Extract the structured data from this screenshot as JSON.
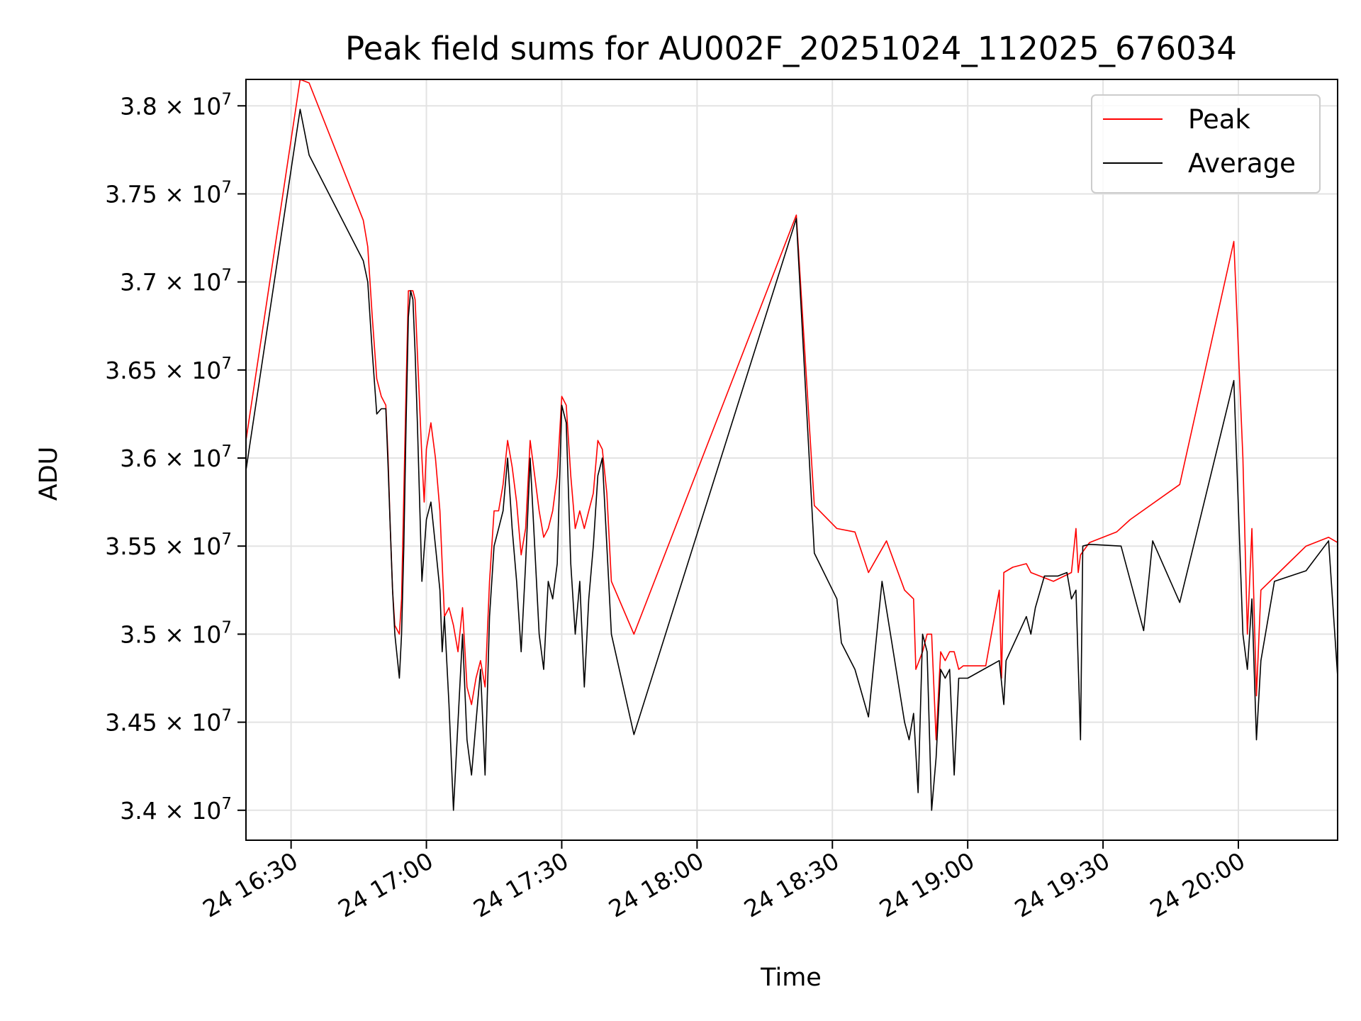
{
  "chart_data": {
    "type": "line",
    "title": "Peak field sums for AU002F_20251024_112025_676034",
    "xlabel": "Time",
    "ylabel": "ADU",
    "x_unit": "time (2025-10-24, HH:MM)",
    "xlim": [
      "16:20",
      "20:22"
    ],
    "ylim": [
      33830000,
      38150000
    ],
    "grid": true,
    "legend_position": "top-right",
    "x_ticks": [
      {
        "value": "16:30",
        "label": "24 16:30"
      },
      {
        "value": "17:00",
        "label": "24 17:00"
      },
      {
        "value": "17:30",
        "label": "24 17:30"
      },
      {
        "value": "18:00",
        "label": "24 18:00"
      },
      {
        "value": "18:30",
        "label": "24 18:30"
      },
      {
        "value": "19:00",
        "label": "24 19:00"
      },
      {
        "value": "19:30",
        "label": "24 19:30"
      },
      {
        "value": "20:00",
        "label": "24 20:00"
      }
    ],
    "y_ticks": [
      {
        "value": 34000000,
        "mantissa": "3.4",
        "exp": "7"
      },
      {
        "value": 34500000,
        "mantissa": "3.45",
        "exp": "7"
      },
      {
        "value": 35000000,
        "mantissa": "3.5",
        "exp": "7"
      },
      {
        "value": 35500000,
        "mantissa": "3.55",
        "exp": "7"
      },
      {
        "value": 36000000,
        "mantissa": "3.6",
        "exp": "7"
      },
      {
        "value": 36500000,
        "mantissa": "3.65",
        "exp": "7"
      },
      {
        "value": 37000000,
        "mantissa": "3.7",
        "exp": "7"
      },
      {
        "value": 37500000,
        "mantissa": "3.75",
        "exp": "7"
      },
      {
        "value": 38000000,
        "mantissa": "3.8",
        "exp": "7"
      }
    ],
    "series": [
      {
        "name": "Peak",
        "color": "#ff0000",
        "points": [
          [
            "16:20",
            36100000
          ],
          [
            "16:32",
            38150000
          ],
          [
            "16:34",
            38130000
          ],
          [
            "16:46",
            37350000
          ],
          [
            "16:47",
            37200000
          ],
          [
            "16:48",
            36800000
          ],
          [
            "16:49",
            36450000
          ],
          [
            "16:50",
            36350000
          ],
          [
            "16:51",
            36300000
          ],
          [
            "16:51.5",
            36000000
          ],
          [
            "16:52",
            35600000
          ],
          [
            "16:52.5",
            35250000
          ],
          [
            "16:53",
            35050000
          ],
          [
            "16:54",
            35000000
          ],
          [
            "16:54.5",
            35200000
          ],
          [
            "16:55",
            35800000
          ],
          [
            "16:55.5",
            36400000
          ],
          [
            "16:56",
            36950000
          ],
          [
            "16:57",
            36950000
          ],
          [
            "16:57.5",
            36900000
          ],
          [
            "16:58",
            36600000
          ],
          [
            "16:58.5",
            36300000
          ],
          [
            "16:59",
            36000000
          ],
          [
            "16:59.5",
            35750000
          ],
          [
            "17:00",
            36050000
          ],
          [
            "17:01",
            36200000
          ],
          [
            "17:02",
            36000000
          ],
          [
            "17:03",
            35700000
          ],
          [
            "17:03.5",
            35400000
          ],
          [
            "17:04",
            35100000
          ],
          [
            "17:05",
            35150000
          ],
          [
            "17:06",
            35050000
          ],
          [
            "17:07",
            34900000
          ],
          [
            "17:08",
            35150000
          ],
          [
            "17:09",
            34700000
          ],
          [
            "17:10",
            34600000
          ],
          [
            "17:11",
            34750000
          ],
          [
            "17:12",
            34850000
          ],
          [
            "17:13",
            34700000
          ],
          [
            "17:14",
            35300000
          ],
          [
            "17:15",
            35700000
          ],
          [
            "17:16",
            35700000
          ],
          [
            "17:17",
            35850000
          ],
          [
            "17:18",
            36100000
          ],
          [
            "17:19",
            35950000
          ],
          [
            "17:20",
            35750000
          ],
          [
            "17:21",
            35450000
          ],
          [
            "17:22",
            35600000
          ],
          [
            "17:23",
            36100000
          ],
          [
            "17:24",
            35900000
          ],
          [
            "17:25",
            35700000
          ],
          [
            "17:26",
            35550000
          ],
          [
            "17:27",
            35600000
          ],
          [
            "17:28",
            35700000
          ],
          [
            "17:29",
            35900000
          ],
          [
            "17:30",
            36350000
          ],
          [
            "17:31",
            36300000
          ],
          [
            "17:32",
            35900000
          ],
          [
            "17:33",
            35600000
          ],
          [
            "17:34",
            35700000
          ],
          [
            "17:35",
            35600000
          ],
          [
            "17:36",
            35700000
          ],
          [
            "17:37",
            35800000
          ],
          [
            "17:38",
            36100000
          ],
          [
            "17:39",
            36050000
          ],
          [
            "17:40",
            35800000
          ],
          [
            "17:41",
            35300000
          ],
          [
            "17:46",
            35000000
          ],
          [
            "18:22",
            37380000
          ],
          [
            "18:26",
            35730000
          ],
          [
            "18:31",
            35600000
          ],
          [
            "18:35",
            35580000
          ],
          [
            "18:38",
            35350000
          ],
          [
            "18:42",
            35530000
          ],
          [
            "18:46",
            35250000
          ],
          [
            "18:48",
            35200000
          ],
          [
            "18:48.5",
            34800000
          ],
          [
            "18:50",
            34900000
          ],
          [
            "18:51",
            35000000
          ],
          [
            "18:52",
            35000000
          ],
          [
            "18:53",
            34400000
          ],
          [
            "18:54",
            34900000
          ],
          [
            "18:55",
            34850000
          ],
          [
            "18:56",
            34900000
          ],
          [
            "18:57",
            34900000
          ],
          [
            "18:58",
            34800000
          ],
          [
            "18:59",
            34820000
          ],
          [
            "19:04",
            34820000
          ],
          [
            "19:07",
            35250000
          ],
          [
            "19:07.5",
            34750000
          ],
          [
            "19:08",
            35350000
          ],
          [
            "19:10",
            35380000
          ],
          [
            "19:13",
            35400000
          ],
          [
            "19:14",
            35350000
          ],
          [
            "19:19",
            35300000
          ],
          [
            "19:23",
            35350000
          ],
          [
            "19:24",
            35600000
          ],
          [
            "19:24.5",
            35350000
          ],
          [
            "19:25",
            35450000
          ],
          [
            "19:27",
            35520000
          ],
          [
            "19:33",
            35580000
          ],
          [
            "19:36",
            35650000
          ],
          [
            "19:47",
            35850000
          ],
          [
            "19:59",
            37230000
          ],
          [
            "20:01",
            36000000
          ],
          [
            "20:02",
            35000000
          ],
          [
            "20:03",
            35600000
          ],
          [
            "20:04",
            34650000
          ],
          [
            "20:05",
            35250000
          ],
          [
            "20:11",
            35400000
          ],
          [
            "20:15",
            35500000
          ],
          [
            "20:20",
            35550000
          ],
          [
            "20:22",
            35520000
          ]
        ]
      },
      {
        "name": "Average",
        "color": "#000000",
        "points": [
          [
            "16:20",
            35930000
          ],
          [
            "16:32",
            37980000
          ],
          [
            "16:34",
            37720000
          ],
          [
            "16:46",
            37120000
          ],
          [
            "16:47",
            37000000
          ],
          [
            "16:48",
            36600000
          ],
          [
            "16:49",
            36250000
          ],
          [
            "16:50",
            36280000
          ],
          [
            "16:51",
            36280000
          ],
          [
            "16:51.5",
            35950000
          ],
          [
            "16:52",
            35600000
          ],
          [
            "16:52.5",
            35250000
          ],
          [
            "16:53",
            35000000
          ],
          [
            "16:54",
            34750000
          ],
          [
            "16:54.5",
            35000000
          ],
          [
            "16:55",
            35500000
          ],
          [
            "16:55.5",
            36200000
          ],
          [
            "16:56",
            36800000
          ],
          [
            "16:56.5",
            36950000
          ],
          [
            "16:57",
            36900000
          ],
          [
            "16:57.5",
            36600000
          ],
          [
            "16:58",
            36200000
          ],
          [
            "16:59",
            35300000
          ],
          [
            "17:00",
            35650000
          ],
          [
            "17:01",
            35750000
          ],
          [
            "17:02",
            35500000
          ],
          [
            "17:03",
            35250000
          ],
          [
            "17:03.5",
            34900000
          ],
          [
            "17:04",
            35100000
          ],
          [
            "17:05",
            34600000
          ],
          [
            "17:06",
            34000000
          ],
          [
            "17:07",
            34500000
          ],
          [
            "17:08",
            35000000
          ],
          [
            "17:09",
            34400000
          ],
          [
            "17:10",
            34200000
          ],
          [
            "17:11",
            34500000
          ],
          [
            "17:12",
            34800000
          ],
          [
            "17:13",
            34200000
          ],
          [
            "17:14",
            35100000
          ],
          [
            "17:15",
            35500000
          ],
          [
            "17:16",
            35600000
          ],
          [
            "17:17",
            35700000
          ],
          [
            "17:18",
            36000000
          ],
          [
            "17:19",
            35600000
          ],
          [
            "17:20",
            35300000
          ],
          [
            "17:21",
            34900000
          ],
          [
            "17:22",
            35400000
          ],
          [
            "17:23",
            36000000
          ],
          [
            "17:24",
            35500000
          ],
          [
            "17:25",
            35000000
          ],
          [
            "17:26",
            34800000
          ],
          [
            "17:27",
            35300000
          ],
          [
            "17:28",
            35200000
          ],
          [
            "17:29",
            35400000
          ],
          [
            "17:30",
            36300000
          ],
          [
            "17:31",
            36200000
          ],
          [
            "17:32",
            35400000
          ],
          [
            "17:33",
            35000000
          ],
          [
            "17:34",
            35300000
          ],
          [
            "17:35",
            34700000
          ],
          [
            "17:36",
            35200000
          ],
          [
            "17:37",
            35500000
          ],
          [
            "17:38",
            35900000
          ],
          [
            "17:39",
            36000000
          ],
          [
            "17:40",
            35500000
          ],
          [
            "17:41",
            35000000
          ],
          [
            "17:46",
            34430000
          ],
          [
            "18:22",
            37360000
          ],
          [
            "18:26",
            35460000
          ],
          [
            "18:31",
            35200000
          ],
          [
            "18:32",
            34950000
          ],
          [
            "18:35",
            34800000
          ],
          [
            "18:38",
            34530000
          ],
          [
            "18:41",
            35300000
          ],
          [
            "18:46",
            34500000
          ],
          [
            "18:47",
            34400000
          ],
          [
            "18:48",
            34550000
          ],
          [
            "18:49",
            34100000
          ],
          [
            "18:50",
            35000000
          ],
          [
            "18:51",
            34900000
          ],
          [
            "18:52",
            34000000
          ],
          [
            "18:53",
            34300000
          ],
          [
            "18:54",
            34800000
          ],
          [
            "18:55",
            34750000
          ],
          [
            "18:56",
            34800000
          ],
          [
            "18:57",
            34200000
          ],
          [
            "18:58",
            34750000
          ],
          [
            "19:00",
            34750000
          ],
          [
            "19:07",
            34850000
          ],
          [
            "19:08",
            34600000
          ],
          [
            "19:08.5",
            34850000
          ],
          [
            "19:13",
            35100000
          ],
          [
            "19:14",
            35000000
          ],
          [
            "19:15",
            35150000
          ],
          [
            "19:17",
            35330000
          ],
          [
            "19:20",
            35330000
          ],
          [
            "19:22",
            35350000
          ],
          [
            "19:23",
            35200000
          ],
          [
            "19:24",
            35250000
          ],
          [
            "19:25",
            34400000
          ],
          [
            "19:25.5",
            35500000
          ],
          [
            "19:27",
            35510000
          ],
          [
            "19:34",
            35500000
          ],
          [
            "19:39",
            35020000
          ],
          [
            "19:41",
            35530000
          ],
          [
            "19:47",
            35180000
          ],
          [
            "19:59",
            36440000
          ],
          [
            "20:01",
            35000000
          ],
          [
            "20:02",
            34800000
          ],
          [
            "20:03",
            35200000
          ],
          [
            "20:04",
            34400000
          ],
          [
            "20:05",
            34850000
          ],
          [
            "20:08",
            35300000
          ],
          [
            "20:15",
            35360000
          ],
          [
            "20:20",
            35530000
          ],
          [
            "20:22",
            34760000
          ]
        ]
      }
    ]
  }
}
